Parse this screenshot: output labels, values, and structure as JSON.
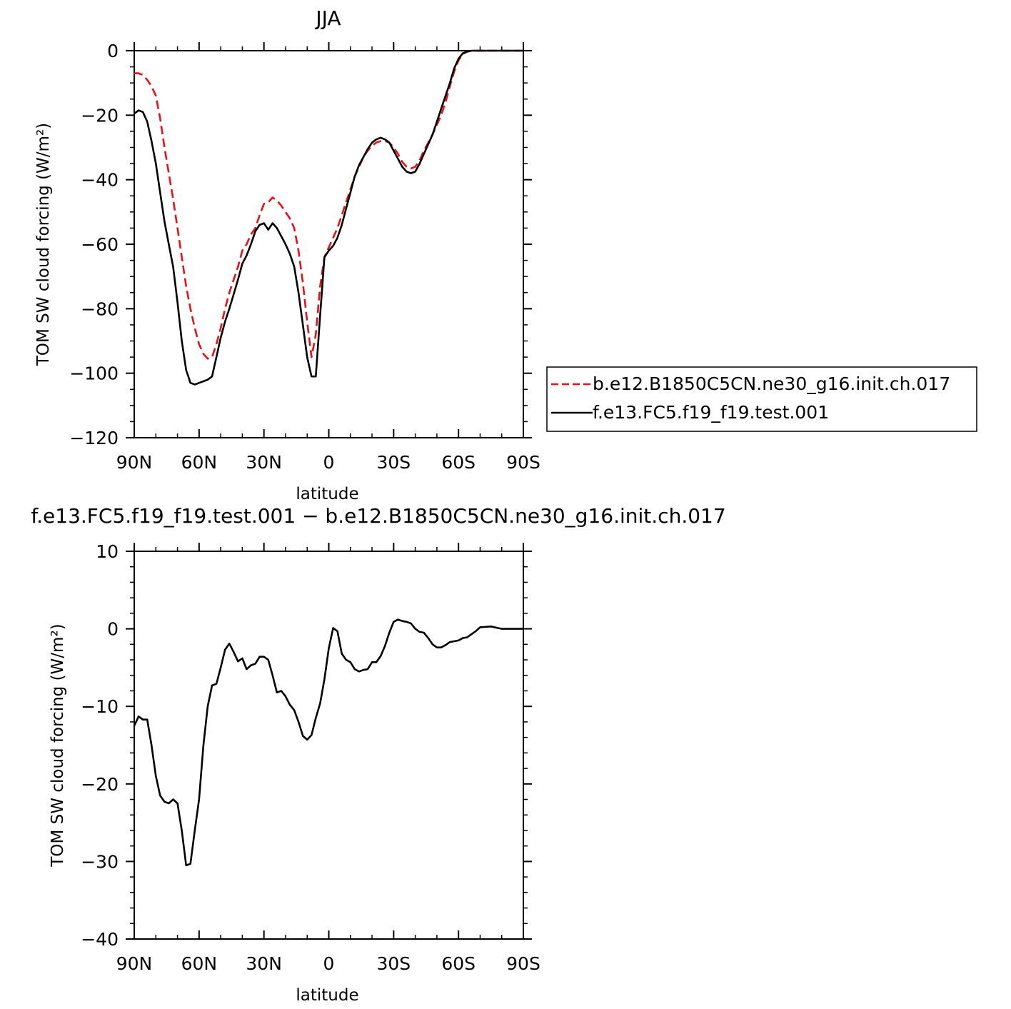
{
  "title": "JJA",
  "legend": [
    {
      "label": "b.e12.B1850C5CN.ne30_g16.init.ch.017",
      "color": "#e8101a",
      "dash": true
    },
    {
      "label": "f.e13.FC5.f19_f19.test.001",
      "color": "#000000",
      "dash": false
    }
  ],
  "chart_data": [
    {
      "type": "line",
      "title": "JJA",
      "xlabel": "latitude",
      "ylabel": "TOM SW cloud forcing (W/m²)",
      "xlim": [
        90,
        -90
      ],
      "ylim": [
        -120,
        0
      ],
      "xticks": [
        90,
        60,
        30,
        0,
        -30,
        -60,
        -90
      ],
      "xtick_labels": [
        "90N",
        "60N",
        "30N",
        "0",
        "30S",
        "60S",
        "90S"
      ],
      "yticks": [
        0,
        -20,
        -40,
        -60,
        -80,
        -100,
        -120
      ],
      "ytick_labels": [
        "0",
        "−20",
        "−40",
        "−60",
        "−80",
        "−100",
        "−120"
      ],
      "series": [
        {
          "name": "b.e12.B1850C5CN.ne30_g16.init.ch.017",
          "color": "#e8101a",
          "dash": true,
          "x": [
            90,
            88,
            86,
            84,
            82,
            80,
            78,
            76,
            74,
            72,
            70,
            68,
            66,
            64,
            62,
            60,
            58,
            56,
            54,
            52,
            50,
            48,
            46,
            44,
            42,
            40,
            38,
            36,
            34,
            32,
            30,
            28,
            26,
            24,
            22,
            20,
            18,
            16,
            14,
            12,
            10,
            8,
            6,
            4,
            2,
            0,
            -2,
            -4,
            -6,
            -8,
            -10,
            -12,
            -14,
            -16,
            -18,
            -20,
            -22,
            -24,
            -26,
            -28,
            -30,
            -32,
            -34,
            -36,
            -38,
            -40,
            -42,
            -44,
            -46,
            -48,
            -50,
            -52,
            -54,
            -56,
            -58,
            -60,
            -62,
            -64,
            -66,
            -68,
            -70,
            -75,
            -80,
            -85,
            -90
          ],
          "y": [
            -7,
            -7,
            -7.5,
            -9,
            -11,
            -14,
            -21,
            -30,
            -38,
            -46,
            -55,
            -64,
            -73,
            -80,
            -86,
            -91,
            -94,
            -95.5,
            -95,
            -91,
            -86,
            -80,
            -75,
            -71,
            -67,
            -62,
            -60,
            -57,
            -55,
            -51,
            -47.5,
            -47,
            -45.5,
            -46.5,
            -48,
            -50,
            -52,
            -55,
            -62,
            -72,
            -84,
            -95,
            -88,
            -73,
            -64,
            -61,
            -58,
            -55,
            -51,
            -47,
            -43,
            -39,
            -36,
            -33,
            -31,
            -29.5,
            -28.5,
            -28,
            -28,
            -28.5,
            -30,
            -32,
            -34.5,
            -36,
            -36.5,
            -36,
            -34,
            -31,
            -28.5,
            -26,
            -23,
            -20,
            -16,
            -11,
            -6.5,
            -3,
            -1,
            -0.3,
            0,
            0,
            0,
            0,
            0,
            0,
            0
          ]
        },
        {
          "name": "f.e13.FC5.f19_f19.test.001",
          "color": "#000000",
          "dash": false,
          "x": [
            90,
            88,
            86,
            84,
            82,
            80,
            78,
            76,
            74,
            72,
            70,
            68,
            66,
            64,
            62,
            60,
            58,
            56,
            54,
            52,
            50,
            48,
            46,
            44,
            42,
            40,
            38,
            36,
            34,
            32,
            30,
            28,
            26,
            24,
            22,
            20,
            18,
            16,
            14,
            12,
            10,
            8,
            6,
            4,
            2,
            0,
            -2,
            -4,
            -6,
            -8,
            -10,
            -12,
            -14,
            -16,
            -18,
            -20,
            -22,
            -24,
            -26,
            -28,
            -30,
            -32,
            -34,
            -36,
            -38,
            -40,
            -42,
            -44,
            -46,
            -48,
            -50,
            -52,
            -54,
            -56,
            -58,
            -60,
            -62,
            -64,
            -66,
            -68,
            -70,
            -75,
            -80,
            -85,
            -90
          ],
          "y": [
            -19.5,
            -18.5,
            -19,
            -22,
            -28,
            -35,
            -44,
            -53,
            -60,
            -67,
            -78,
            -90,
            -99,
            -103,
            -103.5,
            -103,
            -102.5,
            -102,
            -101,
            -95,
            -89,
            -84,
            -80,
            -75.5,
            -71,
            -66,
            -63.5,
            -60,
            -56,
            -54,
            -53.5,
            -55.5,
            -53.5,
            -55,
            -57.5,
            -60,
            -63,
            -67,
            -75,
            -85,
            -95,
            -101,
            -101,
            -82,
            -64,
            -62,
            -60.5,
            -58,
            -54,
            -49,
            -44,
            -39,
            -35.5,
            -33,
            -30.5,
            -28.5,
            -27.5,
            -27,
            -27.5,
            -28.5,
            -31,
            -33.5,
            -36,
            -37.5,
            -38,
            -37.5,
            -35,
            -32,
            -29,
            -26,
            -22,
            -18,
            -14,
            -10,
            -5.5,
            -2.5,
            -0.8,
            -0.3,
            0,
            0,
            0,
            0,
            0,
            0,
            0
          ]
        }
      ]
    },
    {
      "type": "line",
      "title": "f.e13.FC5.f19_f19.test.001 − b.e12.B1850C5CN.ne30_g16.init.ch.017",
      "xlabel": "latitude",
      "ylabel": "TOM SW cloud forcing (W/m²)",
      "xlim": [
        90,
        -90
      ],
      "ylim": [
        -40,
        10
      ],
      "xticks": [
        90,
        60,
        30,
        0,
        -30,
        -60,
        -90
      ],
      "xtick_labels": [
        "90N",
        "60N",
        "30N",
        "0",
        "30S",
        "60S",
        "90S"
      ],
      "yticks": [
        10,
        0,
        -10,
        -20,
        -30,
        -40
      ],
      "ytick_labels": [
        "10",
        "0",
        "−10",
        "−20",
        "−30",
        "−40"
      ],
      "series": [
        {
          "color": "#000000",
          "x": [
            90,
            88,
            86,
            84,
            82,
            80,
            78,
            76,
            74,
            72,
            70,
            68,
            66,
            64,
            62,
            60,
            58,
            56,
            54,
            52,
            50,
            48,
            46,
            44,
            42,
            40,
            38,
            36,
            34,
            32,
            30,
            28,
            26,
            24,
            22,
            20,
            18,
            16,
            14,
            12,
            10,
            8,
            6,
            4,
            2,
            0,
            -2,
            -4,
            -6,
            -8,
            -10,
            -12,
            -14,
            -16,
            -18,
            -20,
            -22,
            -24,
            -26,
            -28,
            -30,
            -32,
            -34,
            -36,
            -38,
            -40,
            -42,
            -44,
            -46,
            -48,
            -50,
            -52,
            -54,
            -56,
            -58,
            -60,
            -62,
            -64,
            -66,
            -68,
            -70,
            -75,
            -80,
            -85,
            -90
          ],
          "y": [
            -12.5,
            -11.3,
            -11.7,
            -11.7,
            -15,
            -19,
            -21.5,
            -22.3,
            -22.5,
            -22,
            -22.5,
            -26,
            -30.5,
            -30.3,
            -26,
            -22,
            -15,
            -10,
            -7.3,
            -7.1,
            -5,
            -2.7,
            -1.9,
            -3,
            -4.2,
            -3.8,
            -5.2,
            -4.7,
            -4.5,
            -3.6,
            -3.6,
            -4,
            -6,
            -8.2,
            -8,
            -8.7,
            -9.8,
            -10.5,
            -12,
            -13.8,
            -14.3,
            -13.7,
            -11.5,
            -9.6,
            -6.5,
            -2.5,
            0.1,
            -0.3,
            -3.2,
            -4,
            -4.3,
            -5.2,
            -5.5,
            -5.3,
            -5.2,
            -4.3,
            -4.3,
            -3.5,
            -2.2,
            -0.5,
            0.9,
            1.2,
            1.0,
            0.9,
            0.7,
            0,
            -0.4,
            -0.5,
            -1.2,
            -2.0,
            -2.4,
            -2.4,
            -2.1,
            -1.7,
            -1.6,
            -1.5,
            -1.2,
            -1.1,
            -0.7,
            -0.3,
            0.2,
            0.3,
            0,
            0,
            0
          ]
        }
      ]
    }
  ]
}
